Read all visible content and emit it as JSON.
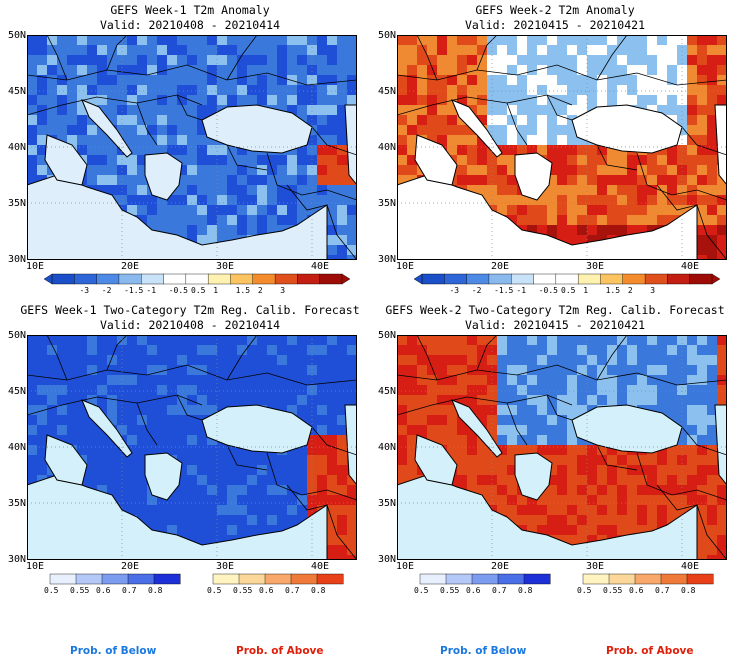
{
  "colors": {
    "sea_light": "#d4f0fa",
    "blue_dark": "#1f4fd6",
    "blue_mid": "#3a78dc",
    "blue_light": "#8cc1ef",
    "orange": "#f08a32",
    "orange_dark": "#e04a1a",
    "red": "#d61e14",
    "red_dark": "#a8120c",
    "below_label": "#1a78e0",
    "above_label": "#e01e0a"
  },
  "panels": [
    {
      "title_line1": "GEFS Week-1 T2m Anomaly",
      "title_line2": "Valid: 20210408 - 20210414",
      "type": "anomaly",
      "dominant": "cold"
    },
    {
      "title_line1": "GEFS Week-2 T2m Anomaly",
      "title_line2": "Valid: 20210415 - 20210421",
      "type": "anomaly",
      "dominant": "warm"
    },
    {
      "title_line1": "GEFS Week-1 Two-Category T2m Reg. Calib. Forecast",
      "title_line2": "Valid: 20210408 - 20210414",
      "type": "probability",
      "dominant": "below"
    },
    {
      "title_line1": "GEFS Week-2 Two-Category T2m Reg. Calib. Forecast",
      "title_line2": "Valid: 20210415 - 20210421",
      "type": "probability",
      "dominant": "mixed"
    }
  ],
  "axes": {
    "lat_labels": [
      "50N",
      "45N",
      "40N",
      "35N",
      "30N"
    ],
    "lon_labels": [
      "10E",
      "20E",
      "30E",
      "40E"
    ]
  },
  "anomaly_colorbar": {
    "colors": [
      "#1a4fc9",
      "#2e66d8",
      "#4d8ae6",
      "#8ab9ee",
      "#c8e2f8",
      "#ffffff",
      "#ffffff",
      "#fff2b0",
      "#fcc461",
      "#f48c2e",
      "#e0501c",
      "#c41d12",
      "#9e0c08"
    ],
    "labels": [
      "-3",
      "-2",
      "-1.5",
      "-1",
      "-0.5",
      "0.5",
      "1",
      "1.5",
      "2",
      "3"
    ]
  },
  "prob_below_colorbar": {
    "colors": [
      "#e8f0fe",
      "#b5c9f8",
      "#7c9cf0",
      "#4a6fe6",
      "#1d2fd6"
    ],
    "labels": [
      "0.5",
      "0.55",
      "0.6",
      "0.7",
      "0.8"
    ]
  },
  "prob_above_colorbar": {
    "colors": [
      "#fff3c0",
      "#fcd79a",
      "#f7a86a",
      "#f07a3a",
      "#e8411a"
    ],
    "labels": [
      "0.5",
      "0.55",
      "0.6",
      "0.7",
      "0.8"
    ]
  },
  "footer": {
    "below": "Prob. of Below",
    "above": "Prob. of Above"
  }
}
